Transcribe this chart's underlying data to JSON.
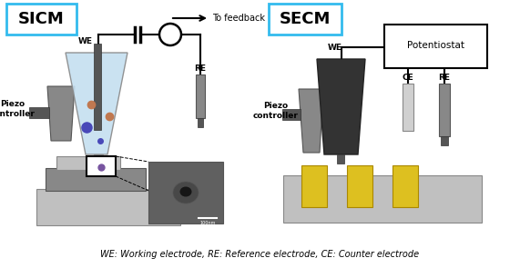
{
  "bg_color": "#ffffff",
  "sicm_label": "SICM",
  "secm_label": "SECM",
  "box_color": "#33bbee",
  "caption": "WE: Working electrode, RE: Reference electrode, CE: Counter electrode",
  "gray_light": "#c0c0c0",
  "gray_medium": "#888888",
  "gray_dark": "#555555",
  "gray_darker": "#333333",
  "gray_darkest": "#222222",
  "blue_light": "#c5dff0",
  "brown_dot": "#c07850",
  "blue_dot": "#4848b8",
  "purple_dot": "#7855a0",
  "yellow_el": "#ddc020",
  "sem_bg": "#606060",
  "sem_dark": "#383838",
  "white": "#ffffff",
  "black": "#000000"
}
